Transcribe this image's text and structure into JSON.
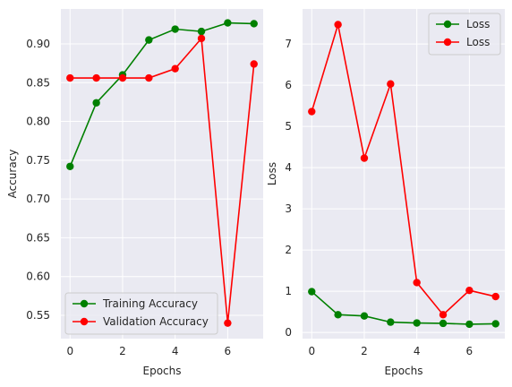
{
  "chart_data": [
    {
      "type": "line",
      "xlabel": "Epochs",
      "ylabel": "Accuracy",
      "xlim": [
        -0.35,
        7.35
      ],
      "ylim": [
        0.52,
        0.945
      ],
      "xticks": [
        "0",
        "2",
        "4",
        "6"
      ],
      "yticks": [
        "0.55",
        "0.60",
        "0.65",
        "0.70",
        "0.75",
        "0.80",
        "0.85",
        "0.90"
      ],
      "grid": true,
      "legend_position": "lower-left",
      "x": [
        0,
        1,
        2,
        3,
        4,
        5,
        6,
        7
      ],
      "series": [
        {
          "name": "Training Accuracy",
          "color": "#008000",
          "marker": "circle",
          "values": [
            0.742,
            0.824,
            0.86,
            0.905,
            0.919,
            0.916,
            0.927,
            0.926
          ]
        },
        {
          "name": "Validation Accuracy",
          "color": "#ff0000",
          "marker": "circle",
          "values": [
            0.856,
            0.856,
            0.856,
            0.856,
            0.868,
            0.907,
            0.54,
            0.874
          ]
        }
      ]
    },
    {
      "type": "line",
      "xlabel": "Epochs",
      "ylabel": "Loss",
      "xlim": [
        -0.35,
        7.35
      ],
      "ylim": [
        -0.15,
        7.85
      ],
      "xticks": [
        "0",
        "2",
        "4",
        "6"
      ],
      "yticks": [
        "0",
        "1",
        "2",
        "3",
        "4",
        "5",
        "6",
        "7"
      ],
      "grid": true,
      "legend_position": "top-right",
      "x": [
        0,
        1,
        2,
        3,
        4,
        5,
        6,
        7
      ],
      "series": [
        {
          "name": "Loss",
          "color": "#008000",
          "marker": "circle",
          "values": [
            0.99,
            0.43,
            0.4,
            0.25,
            0.23,
            0.22,
            0.2,
            0.21
          ]
        },
        {
          "name": "Loss",
          "color": "#ff0000",
          "marker": "circle",
          "values": [
            5.36,
            7.47,
            4.23,
            6.03,
            1.21,
            0.43,
            1.02,
            0.87
          ]
        }
      ]
    }
  ]
}
